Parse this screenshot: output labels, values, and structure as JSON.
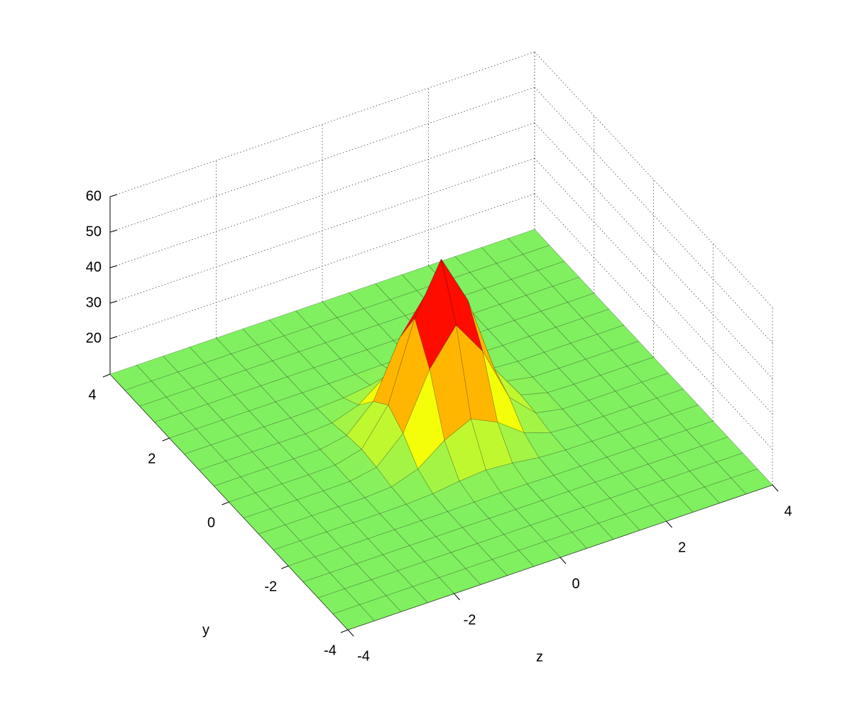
{
  "chart_data": {
    "type": "surface",
    "x": [
      -4,
      -3.5,
      -3,
      -2.5,
      -2,
      -1.5,
      -1,
      -0.5,
      0,
      0.5,
      1,
      1.5,
      2,
      2.5,
      3,
      3.5,
      4
    ],
    "y": [
      -4,
      -3.5,
      -3,
      -2.5,
      -2,
      -1.5,
      -1,
      -0.5,
      0,
      0.5,
      1,
      1.5,
      2,
      2.5,
      3,
      3.5,
      4
    ],
    "z": [
      [
        10,
        10,
        10,
        10,
        10,
        10,
        10,
        10,
        10,
        10,
        10,
        10,
        10,
        10,
        10,
        10,
        10
      ],
      [
        10,
        10,
        10,
        10,
        10,
        10,
        10,
        10,
        10,
        10,
        10,
        10,
        10,
        10,
        10,
        10,
        10
      ],
      [
        10,
        10,
        10,
        10,
        10,
        10,
        10,
        10,
        10,
        10,
        10,
        10,
        10,
        10,
        10,
        10,
        10
      ],
      [
        10,
        10,
        10,
        10,
        10,
        10,
        10,
        10,
        10,
        10,
        10,
        10,
        10,
        10,
        10,
        10,
        10
      ],
      [
        10,
        10,
        10,
        10,
        10,
        10,
        10,
        10.1,
        10.2,
        10.1,
        10,
        10,
        10,
        10,
        10,
        10,
        10
      ],
      [
        10,
        10,
        10,
        10,
        10,
        10.1,
        10.5,
        11.5,
        12.1,
        11.5,
        10.5,
        10.1,
        10,
        10,
        10,
        10,
        10
      ],
      [
        10,
        10,
        10,
        10,
        10,
        10.5,
        13,
        18.5,
        22,
        18.5,
        13,
        10.5,
        10,
        10,
        10,
        10,
        10
      ],
      [
        10,
        10,
        10,
        10,
        10.1,
        11.5,
        18.5,
        34,
        43.9,
        34,
        18.5,
        11.5,
        10.1,
        10,
        10,
        10,
        10
      ],
      [
        10,
        10,
        10,
        10,
        10.2,
        12.1,
        22,
        43.9,
        58,
        43.9,
        22,
        12.1,
        10.2,
        10,
        10,
        10,
        10
      ],
      [
        10,
        10,
        10,
        10,
        10.1,
        11.5,
        18.5,
        34,
        43.9,
        34,
        18.5,
        11.5,
        10.1,
        10,
        10,
        10,
        10
      ],
      [
        10,
        10,
        10,
        10,
        10,
        10.5,
        13,
        18.5,
        22,
        18.5,
        13,
        10.5,
        10,
        10,
        10,
        10,
        10
      ],
      [
        10,
        10,
        10,
        10,
        10,
        10.1,
        10.5,
        11.5,
        12.1,
        11.5,
        10.5,
        10.1,
        10,
        10,
        10,
        10,
        10
      ],
      [
        10,
        10,
        10,
        10,
        10,
        10,
        10,
        10.1,
        10.2,
        10.1,
        10,
        10,
        10,
        10,
        10,
        10,
        10
      ],
      [
        10,
        10,
        10,
        10,
        10,
        10,
        10,
        10,
        10,
        10,
        10,
        10,
        10,
        10,
        10,
        10,
        10
      ],
      [
        10,
        10,
        10,
        10,
        10,
        10,
        10,
        10,
        10,
        10,
        10,
        10,
        10,
        10,
        10,
        10,
        10
      ],
      [
        10,
        10,
        10,
        10,
        10,
        10,
        10,
        10,
        10,
        10,
        10,
        10,
        10,
        10,
        10,
        10,
        10
      ],
      [
        10,
        10,
        10,
        10,
        10,
        10,
        10,
        10,
        10,
        10,
        10,
        10,
        10,
        10,
        10,
        10,
        10
      ]
    ],
    "xlim": [
      -4,
      4
    ],
    "ylim": [
      -4,
      4
    ],
    "zlim": [
      10,
      60
    ],
    "xticks": [
      -4,
      -2,
      0,
      2,
      4
    ],
    "yticks": [
      -4,
      -2,
      0,
      2,
      4
    ],
    "zticks": [
      20,
      30,
      40,
      50,
      60
    ],
    "xlabel": "z",
    "ylabel": "y",
    "grid": true,
    "colormap": [
      "#80f060",
      "#ffff00",
      "#ff8c00",
      "#ff0000",
      "#780000"
    ]
  }
}
